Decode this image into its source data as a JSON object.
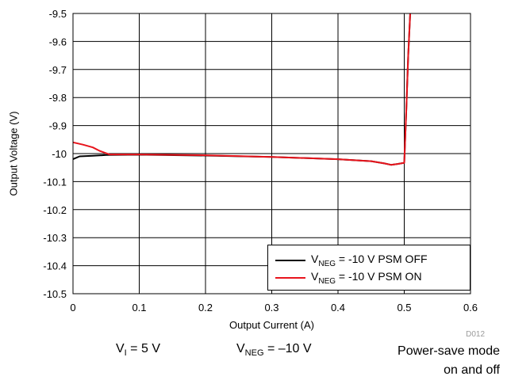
{
  "chart_data": {
    "type": "line",
    "xlabel": "Output Current (A)",
    "ylabel": "Output Voltage (V)",
    "xlim": [
      0,
      0.6
    ],
    "ylim": [
      -10.5,
      -9.5
    ],
    "x_ticks": [
      "0",
      "0.1",
      "0.2",
      "0.3",
      "0.4",
      "0.5",
      "0.6"
    ],
    "y_ticks": [
      "-9.5",
      "-9.6",
      "-9.7",
      "-9.8",
      "-9.9",
      "-10",
      "-10.1",
      "-10.2",
      "-10.3",
      "-10.4",
      "-10.5"
    ],
    "grid": true,
    "legend_position": "bottom-right",
    "series": [
      {
        "label_main": "V",
        "label_sub": "NEG",
        "label_rest": " = -10 V PSM OFF",
        "color": "#000000",
        "x": [
          0,
          0.01,
          0.03,
          0.05,
          0.1,
          0.2,
          0.3,
          0.4,
          0.45,
          0.47,
          0.48,
          0.49,
          0.5,
          0.503,
          0.506,
          0.509
        ],
        "y": [
          -10.02,
          -10.01,
          -10.008,
          -10.005,
          -10.004,
          -10.007,
          -10.012,
          -10.02,
          -10.027,
          -10.035,
          -10.04,
          -10.037,
          -10.033,
          -9.85,
          -9.65,
          -9.5
        ]
      },
      {
        "label_main": "V",
        "label_sub": "NEG",
        "label_rest": " = -10 V PSM ON",
        "color": "#e8141c",
        "x": [
          0,
          0.015,
          0.03,
          0.04,
          0.055,
          0.1,
          0.2,
          0.3,
          0.4,
          0.45,
          0.47,
          0.48,
          0.49,
          0.5,
          0.503,
          0.506,
          0.509
        ],
        "y": [
          -9.96,
          -9.968,
          -9.978,
          -9.99,
          -10.003,
          -10.003,
          -10.006,
          -10.012,
          -10.02,
          -10.027,
          -10.035,
          -10.04,
          -10.037,
          -10.033,
          -9.85,
          -9.65,
          -9.5
        ]
      }
    ]
  },
  "figure_code": "D012",
  "conditions": {
    "vi_main": "V",
    "vi_sub": "I",
    "vi_rest": " = 5 V",
    "vneg_main": "V",
    "vneg_sub": "NEG",
    "vneg_rest": " = –10 V",
    "mode_line1": "Power-save mode",
    "mode_line2": "on and off"
  }
}
